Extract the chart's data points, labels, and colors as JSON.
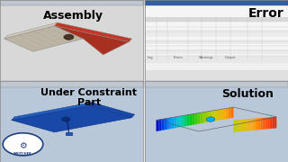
{
  "bg_color": "#e8e8e8",
  "panel_bg": "#f0f0f0",
  "title_top_left": "Assembly",
  "title_top_right": "Error",
  "title_bottom_left": "Under Constraint\nPart",
  "title_bottom_right": "Solution",
  "title_fontsize_large": 9,
  "title_fontsize_medium": 7,
  "divider_color": "#aaaaaa",
  "panel_border_color": "#999999",
  "assembly_bg": "#d8d8d8",
  "error_bg": "#f5f5f5",
  "constraint_bg": "#c8d8e8",
  "solution_bg": "#c8d8e8",
  "window_bar_color": "#c0c8d0",
  "window_bar_height": 0.04
}
